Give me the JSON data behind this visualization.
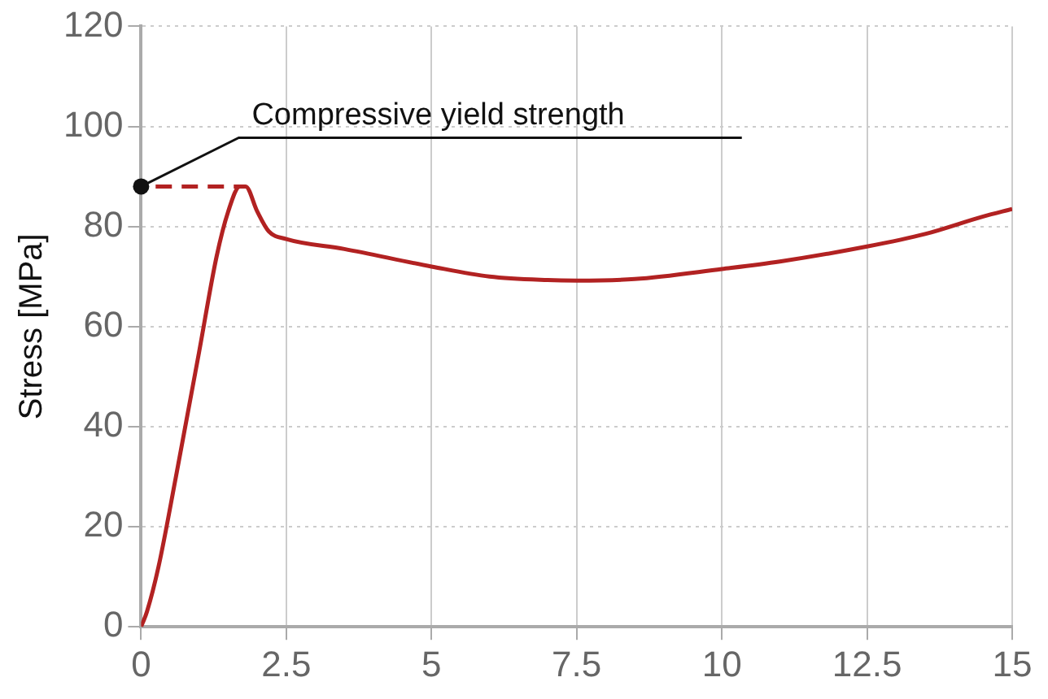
{
  "chart_data": {
    "type": "line",
    "ylabel": "Stress [MPa]",
    "xlim": [
      0,
      15
    ],
    "xticks": [
      0,
      2.5,
      5,
      7.5,
      10,
      12.5,
      15
    ],
    "ylim": [
      0,
      120
    ],
    "yticks": [
      0,
      20,
      40,
      60,
      80,
      100,
      120
    ],
    "grid": true,
    "legend": false,
    "marker": "none",
    "series": [
      {
        "color": "#b22222",
        "line_style": "solid",
        "x": [
          0,
          0.1,
          0.3,
          0.6,
          1.0,
          1.3,
          1.5,
          1.7,
          1.8,
          2.0,
          2.2,
          2.5,
          3.5,
          5,
          6,
          7,
          7.5,
          8.5,
          10,
          11,
          12.5,
          13.5,
          14.5,
          15
        ],
        "values": [
          0,
          3,
          12,
          30,
          55,
          74,
          83,
          88,
          88,
          83,
          79,
          77.5,
          75.5,
          72,
          70,
          69.3,
          69.2,
          69.5,
          71.5,
          73,
          76,
          78.5,
          82,
          83.5
        ]
      },
      {
        "color": "#b22222",
        "line_style": "dashed",
        "x": [
          0.25,
          1.7
        ],
        "values": [
          88,
          88
        ]
      }
    ],
    "annotations": [
      {
        "text": "Compressive yield strength",
        "x": 0,
        "y": 88
      }
    ]
  }
}
